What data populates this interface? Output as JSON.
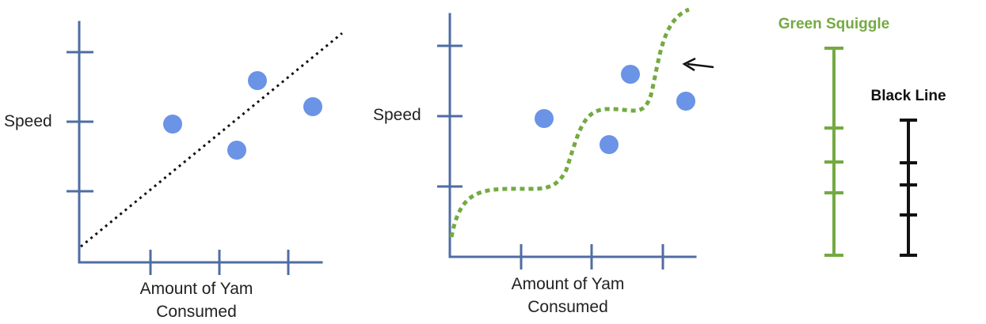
{
  "colors": {
    "axis": "#4f6da3",
    "point": "#6b93e6",
    "squiggle": "#74aa42",
    "black_line": "#111111"
  },
  "plot_left": {
    "ylabel": "Speed",
    "xlabel_line1": "Amount of Yam",
    "xlabel_line2": "Consumed",
    "fit": "black dotted straight line"
  },
  "plot_right": {
    "ylabel": "Speed",
    "xlabel_line1": "Amount of Yam",
    "xlabel_line2": "Consumed",
    "fit": "green dotted squiggle",
    "arrow": "arrow-icon pointing at squiggle"
  },
  "legend": {
    "green_title": "Green Squiggle",
    "black_title": "Black Line",
    "green_scale_marks": 5,
    "black_scale_marks": 5
  }
}
